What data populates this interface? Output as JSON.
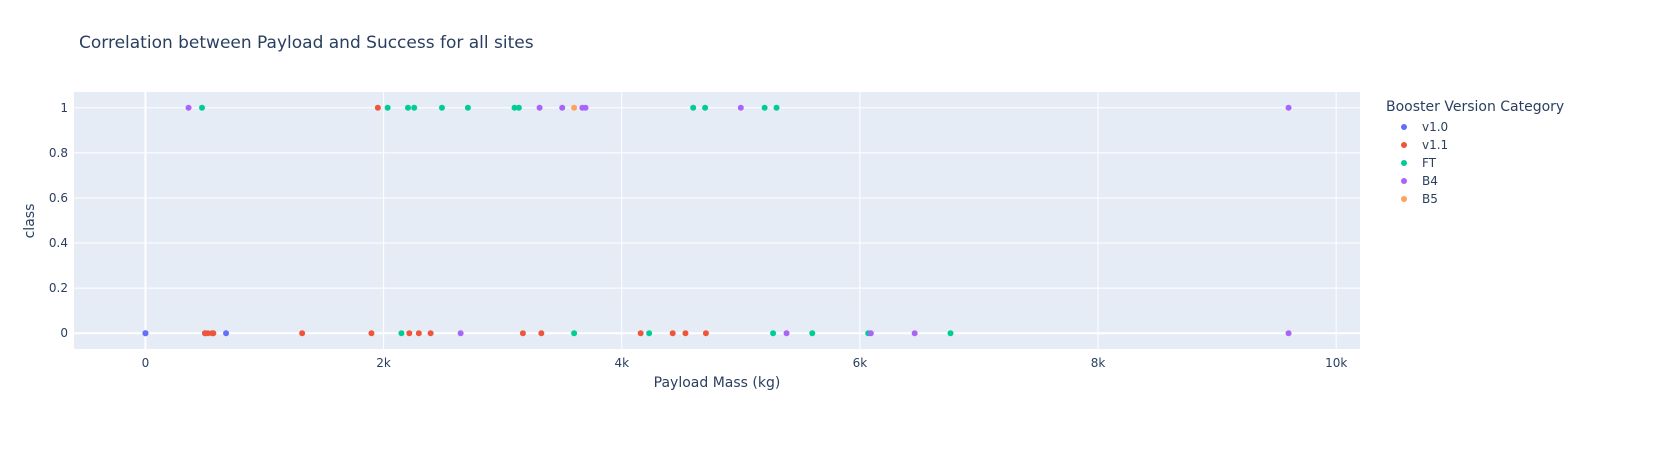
{
  "chart_data": {
    "type": "scatter",
    "title": "Correlation between Payload and Success for all sites",
    "xlabel": "Payload Mass (kg)",
    "ylabel": "class",
    "xlim": [
      -600,
      10200
    ],
    "ylim": [
      -0.07,
      1.07
    ],
    "x_ticks": [
      0,
      2000,
      4000,
      6000,
      8000,
      10000
    ],
    "x_tick_labels": [
      "0",
      "2k",
      "4k",
      "6k",
      "8k",
      "10k"
    ],
    "y_ticks": [
      0,
      0.2,
      0.4,
      0.6,
      0.8,
      1
    ],
    "y_tick_labels": [
      "0",
      "0.2",
      "0.4",
      "0.6",
      "0.8",
      "1"
    ],
    "grid": true,
    "legend_title": "Booster Version Category",
    "legend_position": "right",
    "series": [
      {
        "name": "v1.0",
        "color": "#636efa",
        "points": [
          [
            0,
            0
          ],
          [
            0,
            0
          ],
          [
            500,
            0
          ],
          [
            677,
            0
          ]
        ]
      },
      {
        "name": "v1.1",
        "color": "#ef553b",
        "points": [
          [
            525,
            0
          ],
          [
            500,
            0
          ],
          [
            560,
            0
          ],
          [
            570,
            0
          ],
          [
            1316,
            0
          ],
          [
            1898,
            0
          ],
          [
            1952,
            1
          ],
          [
            2216,
            0
          ],
          [
            2296,
            0
          ],
          [
            2395,
            0
          ],
          [
            3170,
            0
          ],
          [
            3325,
            0
          ],
          [
            4159,
            0
          ],
          [
            4428,
            0
          ],
          [
            4535,
            0
          ],
          [
            4707,
            0
          ]
        ]
      },
      {
        "name": "FT",
        "color": "#00cc96",
        "points": [
          [
            475,
            1
          ],
          [
            2034,
            1
          ],
          [
            2150,
            0
          ],
          [
            2205,
            1
          ],
          [
            2257,
            1
          ],
          [
            2490,
            1
          ],
          [
            2708,
            1
          ],
          [
            3100,
            1
          ],
          [
            3136,
            1
          ],
          [
            3600,
            0
          ],
          [
            4230,
            0
          ],
          [
            4600,
            1
          ],
          [
            4700,
            1
          ],
          [
            5200,
            1
          ],
          [
            5271,
            0
          ],
          [
            5300,
            1
          ],
          [
            5600,
            0
          ],
          [
            6070,
            0
          ],
          [
            6761,
            0
          ]
        ]
      },
      {
        "name": "B4",
        "color": "#ab63fa",
        "points": [
          [
            362,
            1
          ],
          [
            2647,
            0
          ],
          [
            3310,
            1
          ],
          [
            3500,
            1
          ],
          [
            3669,
            1
          ],
          [
            3696,
            1
          ],
          [
            5000,
            1
          ],
          [
            5384,
            0
          ],
          [
            6092,
            0
          ],
          [
            6460,
            0
          ],
          [
            9600,
            1
          ],
          [
            9600,
            0
          ]
        ]
      },
      {
        "name": "B5",
        "color": "#ffa15a",
        "points": [
          [
            3600,
            1
          ]
        ]
      }
    ]
  }
}
